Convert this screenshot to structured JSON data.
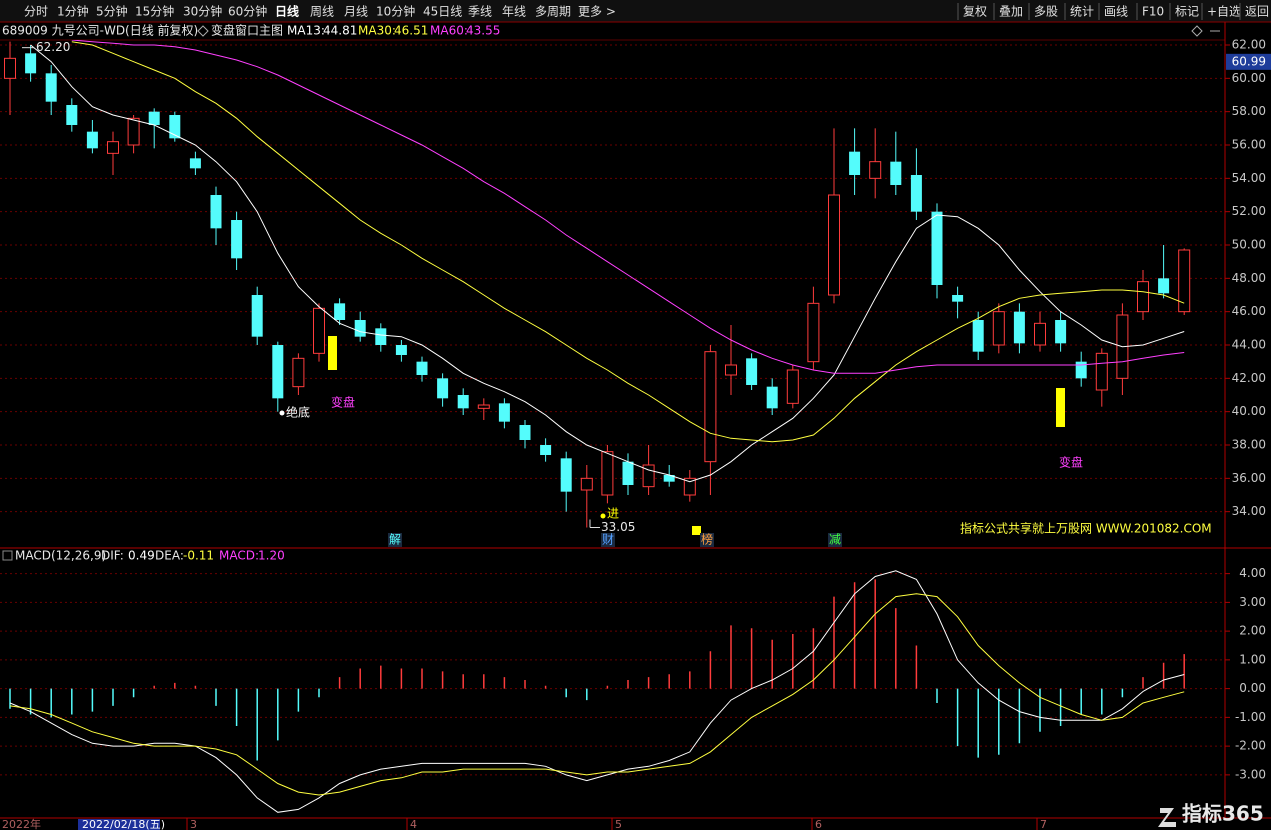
{
  "toolbar": {
    "left": [
      "分时",
      "1分钟",
      "5分钟",
      "15分钟",
      "30分钟",
      "60分钟",
      "日线",
      "周线",
      "月线",
      "10分钟",
      "45日线",
      "季线",
      "年线",
      "多周期",
      "更多 >"
    ],
    "right": [
      "复权",
      "叠加",
      "多股",
      "统计",
      "画线",
      "F10",
      "标记",
      "+自选",
      "返回"
    ]
  },
  "date_labels": [
    "2022年",
    "2022/02/18(五)",
    "3",
    "4",
    "5",
    "6",
    "7"
  ],
  "logo": "指标365",
  "chart_data": [
    {
      "type": "candlestick",
      "symbol": "689009 九号公司-WD(日线 前复权)",
      "title": "变盘窗口主图",
      "open": [
        60,
        61.5,
        60.3,
        58.4,
        56.8,
        55.5,
        56,
        58,
        57.8,
        55.2,
        53,
        51.5,
        47,
        44,
        41.5,
        43.5,
        46.5,
        45.5,
        45,
        44,
        43,
        42,
        41,
        40.2,
        40.5,
        39.2,
        38,
        37.2,
        35.3,
        35,
        37,
        35.5,
        36.2,
        35,
        37,
        42.2,
        43.2,
        41.5,
        40.5,
        43,
        47,
        55.6,
        54,
        55,
        54.2,
        52,
        47,
        45.5,
        44,
        46,
        44,
        45.5,
        43,
        41.3,
        42,
        46,
        48,
        46
      ],
      "high": [
        62.2,
        62,
        60.8,
        58.8,
        57.5,
        56.8,
        57.8,
        58.2,
        58,
        55.6,
        53.5,
        52,
        47.5,
        44.2,
        43.5,
        46.5,
        46.8,
        46,
        45.3,
        44.3,
        43.3,
        42.3,
        41.4,
        40.8,
        40.8,
        39.5,
        38.4,
        37.6,
        36.8,
        38,
        37.5,
        38,
        36.8,
        36.5,
        44,
        45.2,
        43.5,
        42,
        42.8,
        47.5,
        57,
        57,
        57,
        56.8,
        55.8,
        52.5,
        47.5,
        46,
        46.5,
        46.5,
        46,
        46,
        43.6,
        43.8,
        46.5,
        48.5,
        50,
        49.8
      ],
      "low": [
        57.8,
        59.8,
        57.8,
        56.8,
        55.5,
        54.2,
        55.5,
        55.8,
        56.2,
        54.2,
        50,
        48.5,
        44,
        40,
        41,
        43,
        45.2,
        44.2,
        43.6,
        43,
        41.8,
        40.3,
        39.8,
        39.5,
        39,
        37.8,
        37,
        34,
        33.05,
        34.5,
        35,
        35,
        35.5,
        34.6,
        35,
        41,
        41.3,
        39.8,
        40.2,
        42.5,
        46.5,
        53,
        52.8,
        53,
        51.5,
        46.8,
        45.6,
        43.1,
        43.5,
        43.5,
        43.6,
        43.6,
        41.5,
        40.3,
        41,
        45.5,
        46.8,
        45.8
      ],
      "close": [
        61.2,
        60.3,
        58.6,
        57.2,
        55.8,
        56.2,
        57.6,
        57.2,
        56.4,
        54.6,
        51,
        49.2,
        44.5,
        40.8,
        43.2,
        46.2,
        45.5,
        44.5,
        44,
        43.4,
        42.2,
        40.8,
        40.2,
        40.4,
        39.4,
        38.3,
        37.4,
        35.2,
        36,
        37.6,
        35.6,
        36.8,
        35.8,
        36,
        43.6,
        42.8,
        41.6,
        40.2,
        42.5,
        46.5,
        53,
        54.2,
        55,
        53.6,
        52,
        47.6,
        46.6,
        43.6,
        46,
        44.1,
        45.3,
        44.1,
        42,
        43.5,
        45.8,
        47.8,
        47.1,
        49.7
      ],
      "up_color": "#ff3c3c",
      "down_color": "#54fcfc",
      "series": [
        {
          "name": "MA13:",
          "color": "#ffffff",
          "values": [
            null,
            62,
            61,
            59.5,
            58.3,
            57.8,
            57.5,
            57.2,
            56.6,
            56,
            55,
            53.8,
            52,
            49.5,
            47.5,
            46.3,
            45.3,
            44.8,
            44.6,
            44.5,
            44,
            43.2,
            42.3,
            41.7,
            41.2,
            40.6,
            39.8,
            38.8,
            38,
            37.5,
            37,
            36.5,
            36.2,
            35.8,
            36.2,
            37,
            38,
            38.8,
            39.6,
            40.8,
            42.2,
            44.5,
            46.8,
            49,
            51,
            51.8,
            51.7,
            51,
            50,
            48.5,
            47.2,
            46,
            45.2,
            44.3,
            43.9,
            44,
            44.4,
            44.81
          ]
        },
        {
          "name": "MA30:",
          "color": "#ffff40",
          "values": [
            null,
            null,
            null,
            62.2,
            62,
            61.5,
            61,
            60.5,
            60,
            59.2,
            58.5,
            57.6,
            56.5,
            55.5,
            54.5,
            53.5,
            52.5,
            51.5,
            50.7,
            50,
            49.2,
            48.5,
            47.8,
            47,
            46.2,
            45.5,
            44.8,
            44,
            43.2,
            42.5,
            41.7,
            41,
            40.2,
            39.4,
            38.7,
            38.4,
            38.3,
            38.2,
            38.3,
            38.6,
            39.6,
            40.8,
            41.8,
            42.8,
            43.6,
            44.3,
            45,
            45.6,
            46.3,
            46.8,
            47,
            47.1,
            47.2,
            47.3,
            47.3,
            47.2,
            47,
            46.51
          ]
        },
        {
          "name": "MA60:",
          "color": "#ff40ff",
          "values": [
            null,
            null,
            null,
            62.3,
            62.2,
            62.1,
            62,
            62,
            61.9,
            61.7,
            61.4,
            61.1,
            60.7,
            60.2,
            59.6,
            59,
            58.4,
            57.8,
            57.2,
            56.6,
            56,
            55.3,
            54.6,
            53.8,
            53.1,
            52.3,
            51.5,
            50.6,
            49.8,
            49,
            48.2,
            47.4,
            46.6,
            45.8,
            45,
            44.3,
            43.7,
            43.2,
            42.8,
            42.5,
            42.3,
            42.3,
            42.3,
            42.5,
            42.7,
            42.8,
            42.8,
            42.8,
            42.8,
            42.8,
            42.8,
            42.8,
            42.8,
            42.9,
            43,
            43.2,
            43.4,
            43.55
          ]
        }
      ],
      "ylim": [
        32,
        62.3
      ],
      "yticks": [
        {
          "value": 34,
          "label": "34.00"
        },
        {
          "value": 36,
          "label": "36.00"
        },
        {
          "value": 38,
          "label": "38.00"
        },
        {
          "value": 40,
          "label": "40.00"
        },
        {
          "value": 42,
          "label": "42.00"
        },
        {
          "value": 44,
          "label": "44.00"
        },
        {
          "value": 46,
          "label": "46.00"
        },
        {
          "value": 48,
          "label": "48.00"
        },
        {
          "value": 50,
          "label": "50.00"
        },
        {
          "value": 52,
          "label": "52.00"
        },
        {
          "value": 54,
          "label": "54.00"
        },
        {
          "value": 56,
          "label": "56.00"
        },
        {
          "value": 58,
          "label": "58.00"
        },
        {
          "value": 60,
          "label": "60.00"
        },
        {
          "value": 62,
          "label": "62.00"
        }
      ],
      "grid": true,
      "price_tag": 60.99,
      "high_label": {
        "value": 62.2,
        "label": "62.20"
      },
      "low_label": 33.05,
      "signals": {
        "bottom": "绝底",
        "turn": [
          "变盘",
          "变盘"
        ],
        "buy": "进"
      },
      "events": [
        "解",
        "财",
        "榜",
        "减"
      ],
      "watermark": "指标公式共享就上万股网 WWW.201082.COM"
    },
    {
      "type": "macd",
      "title": "MACD(12,26,9)",
      "up_color": "#ff3c3c",
      "down_color": "#54fcfc",
      "series": [
        {
          "name": "DIF:",
          "color": "#ffffff",
          "values": [
            -0.5,
            -0.8,
            -1.2,
            -1.6,
            -1.9,
            -2,
            -2,
            -1.9,
            -1.9,
            -2,
            -2.4,
            -3,
            -3.8,
            -4.3,
            -4.2,
            -3.8,
            -3.3,
            -3,
            -2.8,
            -2.7,
            -2.6,
            -2.6,
            -2.6,
            -2.6,
            -2.6,
            -2.6,
            -2.7,
            -3,
            -3.2,
            -3,
            -2.8,
            -2.7,
            -2.5,
            -2.2,
            -1.2,
            -0.4,
            0,
            0.3,
            0.7,
            1.3,
            2.3,
            3.3,
            3.9,
            4.1,
            3.8,
            2.6,
            1,
            0.2,
            -0.4,
            -0.8,
            -1,
            -1.1,
            -1.1,
            -1.1,
            -0.7,
            -0.1,
            0.3,
            0.49
          ]
        },
        {
          "name": "DEA:",
          "color": "#ffff40",
          "values": [
            -0.6,
            -0.7,
            -0.9,
            -1.2,
            -1.5,
            -1.7,
            -1.9,
            -2,
            -2,
            -2,
            -2.1,
            -2.3,
            -2.8,
            -3.3,
            -3.6,
            -3.7,
            -3.6,
            -3.4,
            -3.2,
            -3.1,
            -2.9,
            -2.9,
            -2.8,
            -2.8,
            -2.8,
            -2.8,
            -2.8,
            -2.9,
            -3,
            -2.9,
            -2.9,
            -2.8,
            -2.7,
            -2.6,
            -2.2,
            -1.6,
            -1,
            -0.6,
            -0.2,
            0.3,
            1,
            1.8,
            2.6,
            3.2,
            3.3,
            3.2,
            2.5,
            1.5,
            0.8,
            0.2,
            -0.3,
            -0.6,
            -0.9,
            -1.1,
            -1,
            -0.5,
            -0.3,
            -0.11
          ]
        },
        {
          "name": "MACD:",
          "color": "#ff40ff",
          "values": [
            -0.7,
            -0.9,
            -1,
            -0.9,
            -0.8,
            -0.6,
            -0.3,
            0.1,
            0.2,
            0.1,
            -0.6,
            -1.3,
            -2.5,
            -1.8,
            -0.8,
            -0.3,
            0.4,
            0.7,
            0.8,
            0.7,
            0.7,
            0.6,
            0.5,
            0.5,
            0.4,
            0.3,
            0.1,
            -0.3,
            -0.4,
            0.1,
            0.3,
            0.4,
            0.5,
            0.6,
            1.3,
            2.2,
            2.1,
            1.7,
            1.9,
            2.1,
            3.2,
            3.7,
            3.8,
            2.8,
            1.5,
            -0.5,
            -2,
            -2.4,
            -2.3,
            -1.9,
            -1.5,
            -1.3,
            -0.9,
            -0.9,
            -0.3,
            0.4,
            0.9,
            1.2
          ],
          "readout": {
            "value": 1.2,
            "label": "1.20"
          }
        }
      ],
      "ylim": [
        -4.5,
        4.3
      ],
      "yticks": [
        {
          "value": -3,
          "label": "-3.00"
        },
        {
          "value": -2,
          "label": "-2.00"
        },
        {
          "value": -1,
          "label": "-1.00"
        },
        {
          "value": 0,
          "label": "0.00"
        },
        {
          "value": 1,
          "label": "1.00"
        },
        {
          "value": 2,
          "label": "2.00"
        },
        {
          "value": 3,
          "label": "3.00"
        },
        {
          "value": 4,
          "label": "4.00"
        }
      ],
      "grid": true
    }
  ]
}
